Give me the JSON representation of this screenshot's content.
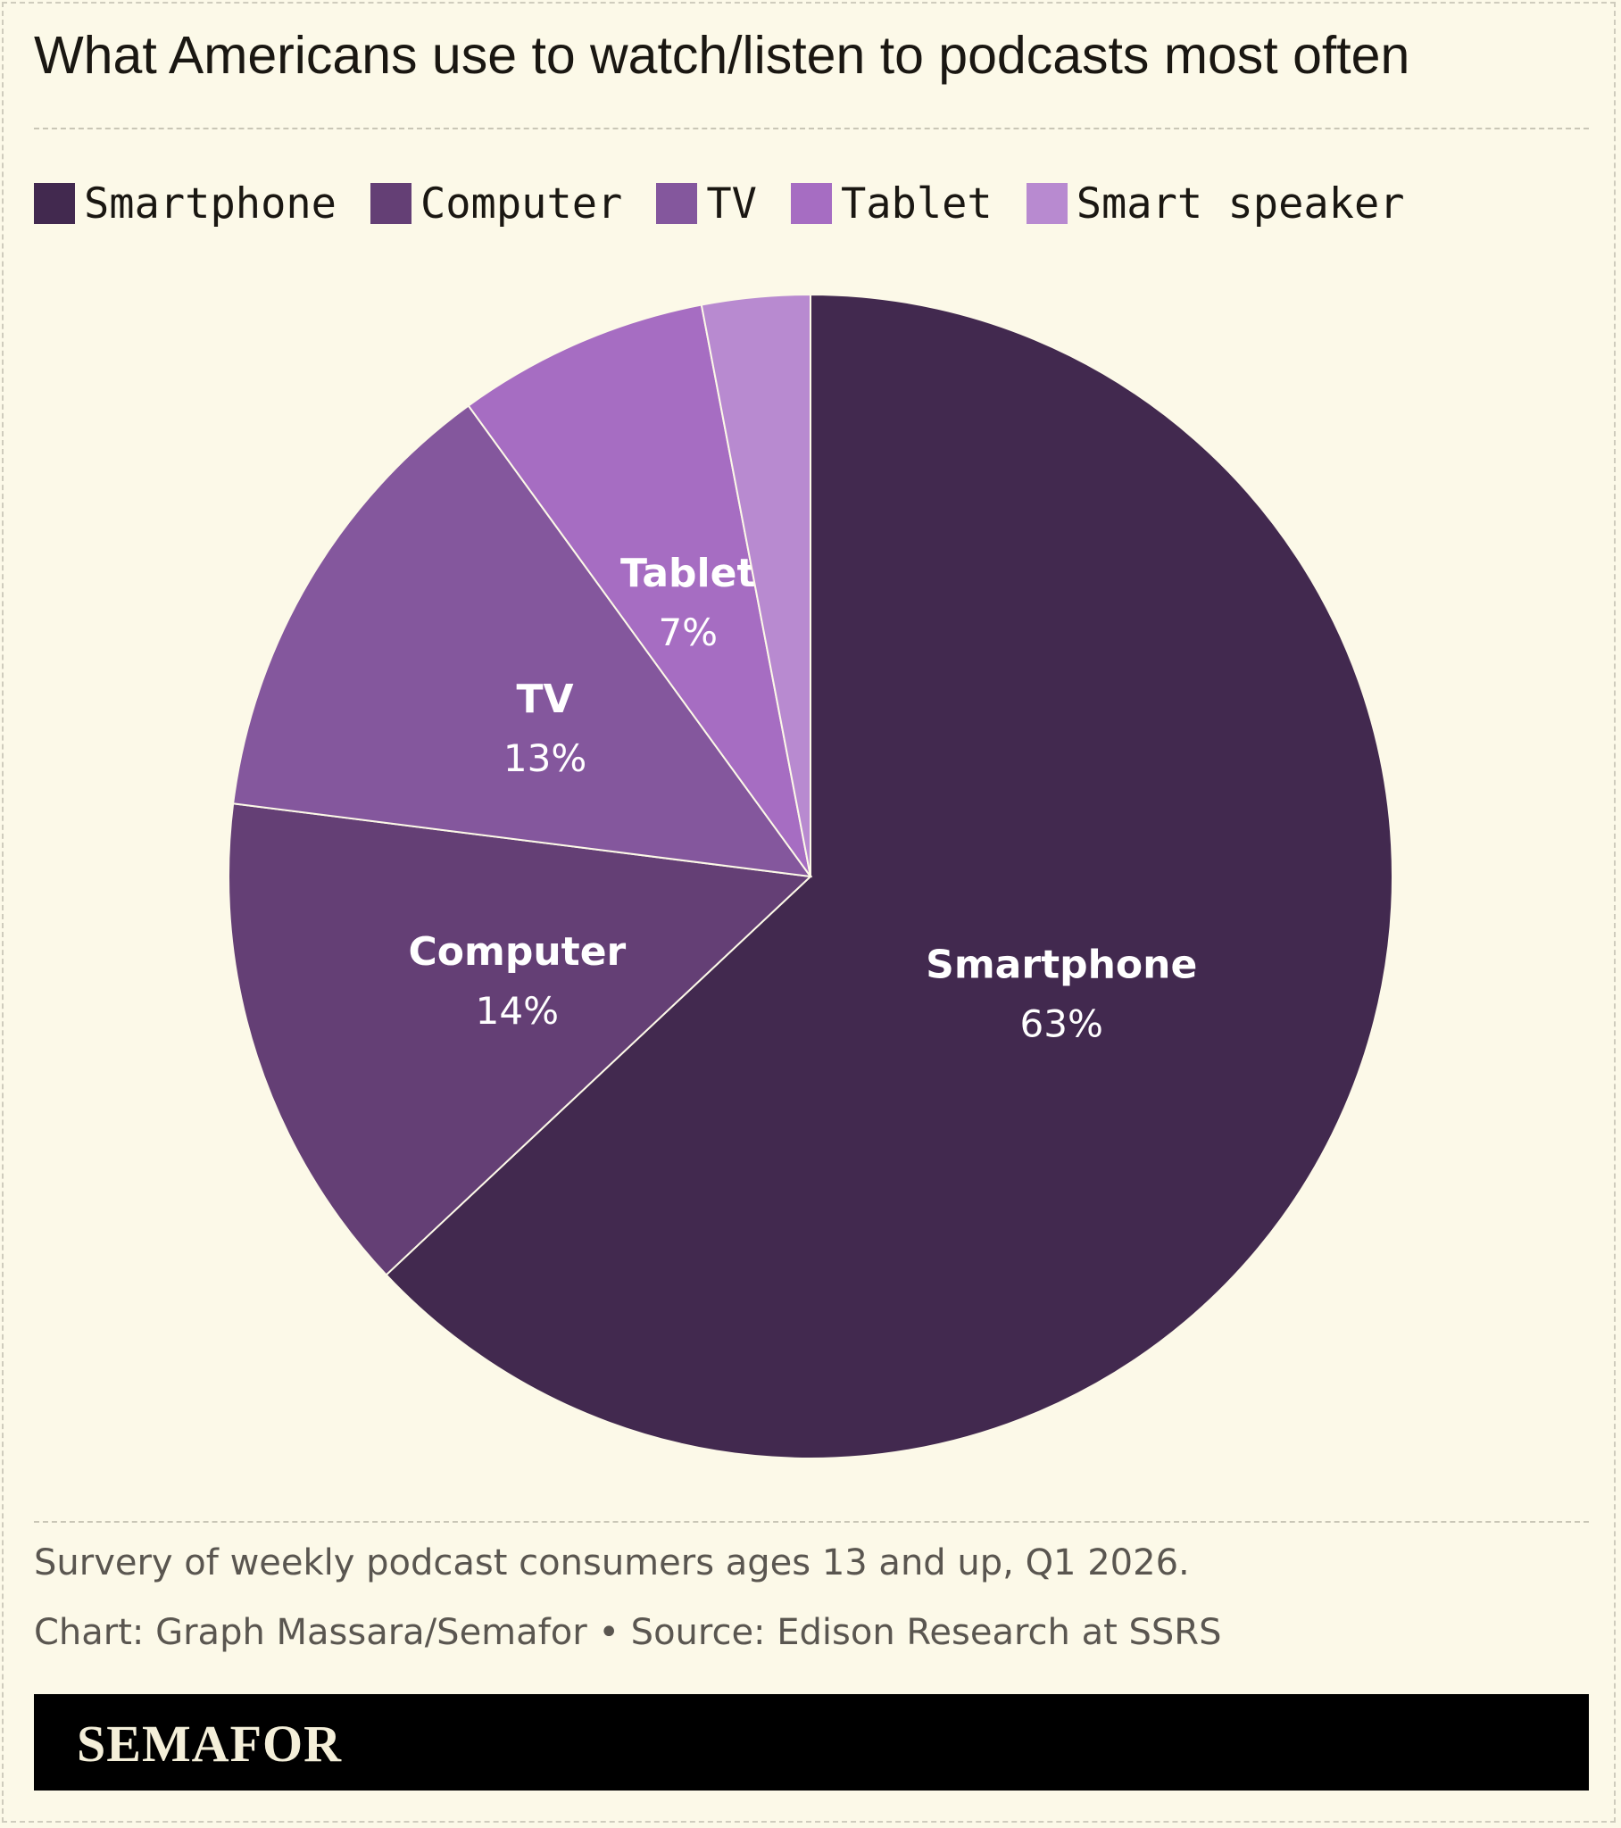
{
  "title": "What Americans use to watch/listen to podcasts most often",
  "subtitle": "Survery of weekly podcast consumers ages 13 and up, Q1 2026.",
  "credit": "Chart: Graph Massara/Semafor • Source: Edison Research at SSRS",
  "brand": "SEMAFOR",
  "colors": {
    "background": "#fcf9e8",
    "Smartphone": "#42294f",
    "Computer": "#643f75",
    "TV": "#84579d",
    "Tablet": "#a66dc2",
    "Smart speaker": "#b88ad0"
  },
  "chart_data": {
    "type": "pie",
    "title": "What Americans use to watch/listen to podcasts most often",
    "start": "12 o'clock",
    "direction": "clockwise",
    "legend_position": "top",
    "slices": [
      {
        "label": "Smartphone",
        "value": 63,
        "display": "63%",
        "color": "#42294f",
        "labeled": true
      },
      {
        "label": "Computer",
        "value": 14,
        "display": "14%",
        "color": "#643f75",
        "labeled": true
      },
      {
        "label": "TV",
        "value": 13,
        "display": "13%",
        "color": "#84579d",
        "labeled": true
      },
      {
        "label": "Tablet",
        "value": 7,
        "display": "7%",
        "color": "#a66dc2",
        "labeled": true
      },
      {
        "label": "Smart speaker",
        "value": 3,
        "display": "3%",
        "color": "#b88ad0",
        "labeled": false
      }
    ]
  }
}
